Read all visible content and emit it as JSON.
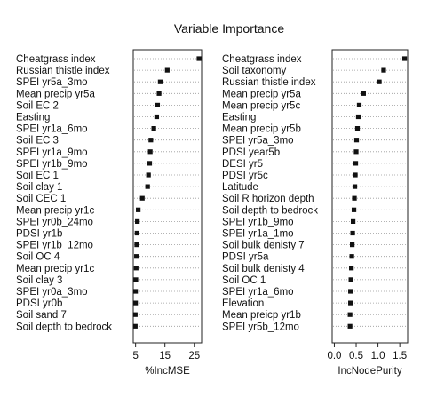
{
  "title": "Variable Importance",
  "chart_data": [
    {
      "type": "scatter",
      "xlabel": "%IncMSE",
      "xlim": [
        4.2,
        27.5
      ],
      "xticks": [
        5,
        15,
        25
      ],
      "variables": [
        "Cheatgrass index",
        "Russian thistle index",
        "SPEI yr5a_3mo",
        "Mean precip yr5a",
        "Soil EC 2",
        "Easting",
        "SPEI yr1a_6mo",
        "Soil EC 3",
        "SPEI yr1a_9mo",
        "SPEI yr1b_9mo",
        "Soil EC 1",
        "Soil clay 1",
        "Soil CEC 1",
        "Mean precip yr1c",
        "SPEI yr0b_24mo",
        "PDSI yr1b",
        "SPEI yr1b_12mo",
        "Soil OC 4",
        "Mean precip yr1c",
        "Soil clay 3",
        "SPEI yr0a_3mo",
        "PDSI yr0b",
        "Soil sand 7",
        "Soil depth to bedrock"
      ],
      "values": [
        26.6,
        15.8,
        13.4,
        13.0,
        12.5,
        12.2,
        11.2,
        10.2,
        10.0,
        9.8,
        9.4,
        9.1,
        7.3,
        5.9,
        5.6,
        5.5,
        5.4,
        5.3,
        5.2,
        5.1,
        5.0,
        5.0,
        4.9,
        4.9
      ]
    },
    {
      "type": "scatter",
      "xlabel": "IncNodePurity",
      "xlim": [
        -0.05,
        1.68
      ],
      "xticks": [
        0.0,
        0.5,
        1.0,
        1.5
      ],
      "tick_labels": [
        "0.0",
        "0.5",
        "1.0",
        "1.5"
      ],
      "variables": [
        "Cheatgrass index",
        "Soil taxonomy",
        "Russian thistle index",
        "Mean precip yr5a",
        "Mean precip yr5c",
        "Easting",
        "Mean precip yr5b",
        "SPEI yr5a_3mo",
        "PDSI year5b",
        "DESI yr5",
        "PDSI yr5c",
        "Latitude",
        "Soil R horizon depth",
        "Soil depth to bedrock",
        "SPEI yr1b_9mo",
        "SPEI yr1a_1mo",
        "Soil bulk denisty 7",
        "PDSI yr5a",
        "Soil bulk denisty 4",
        "Soil OC 1",
        "SPEI yr1a_6mo",
        "Elevation",
        "Mean preicp yr1b",
        "SPEI yr5b_12mo"
      ],
      "values": [
        1.61,
        1.13,
        1.03,
        0.67,
        0.57,
        0.55,
        0.53,
        0.51,
        0.5,
        0.49,
        0.48,
        0.47,
        0.46,
        0.45,
        0.43,
        0.42,
        0.41,
        0.4,
        0.39,
        0.38,
        0.37,
        0.37,
        0.36,
        0.36
      ]
    }
  ]
}
